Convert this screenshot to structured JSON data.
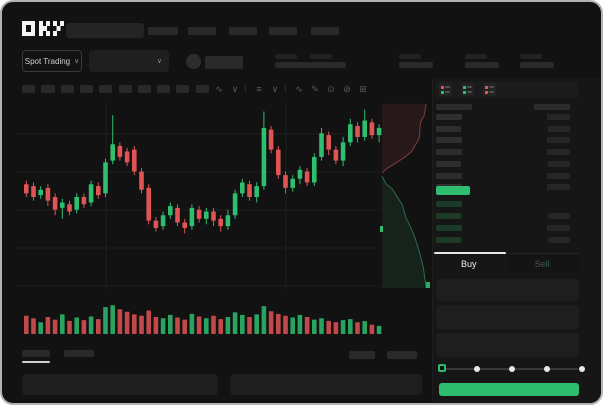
{
  "app": {
    "title": "OKX Spot Trading"
  },
  "colors": {
    "green": "#2fbd70",
    "red": "#e15454",
    "skeleton": "#2a2a2a",
    "skeleton_dim": "#232323",
    "bid_green": "#1b3a28",
    "depth_red_line": "#a05050",
    "depth_green_line": "#3c8a68"
  },
  "header": {
    "logo": "OKX",
    "nav_placeholders": [
      30,
      28,
      28,
      28,
      28
    ]
  },
  "ticker": {
    "market_selector_label": "Spot Trading",
    "chevron": "∨",
    "stat_placeholders": [
      {
        "label_w": 22,
        "value_w": 36
      },
      {
        "label_w": 22,
        "value_w": 36
      },
      {
        "label_w": 22,
        "value_w": 34
      },
      {
        "label_w": 22,
        "value_w": 34
      },
      {
        "label_w": 22,
        "value_w": 34
      }
    ]
  },
  "chart_toolbar": {
    "interval_buttons": [
      13,
      14,
      13,
      13,
      13,
      13,
      13,
      13,
      13,
      13
    ],
    "tools": [
      {
        "name": "indicators-dropdown-icon",
        "glyph": "∿"
      },
      {
        "name": "chevron-down-icon",
        "glyph": "∨"
      },
      {
        "name": "toolbar-divider",
        "glyph": "|"
      },
      {
        "name": "chart-type-dropdown-icon",
        "glyph": "≡"
      },
      {
        "name": "chevron-down-icon",
        "glyph": "∨"
      },
      {
        "name": "toolbar-divider",
        "glyph": "|"
      },
      {
        "name": "trendline-tool-icon",
        "glyph": "∿"
      },
      {
        "name": "draw-tool-icon",
        "glyph": "✎"
      },
      {
        "name": "screenshot-tool-icon",
        "glyph": "⊙"
      },
      {
        "name": "hide-drawings-icon",
        "glyph": "⊘"
      },
      {
        "name": "fullscreen-icon",
        "glyph": "⊞"
      }
    ]
  },
  "order_book": {
    "view_icons": [
      {
        "name": "book-combined-view-icon",
        "rows": [
          "#e15454",
          "#2fbd70"
        ]
      },
      {
        "name": "book-bids-view-icon",
        "rows": [
          "#2fbd70",
          "#2fbd70"
        ]
      },
      {
        "name": "book-asks-view-icon",
        "rows": [
          "#e15454",
          "#e15454"
        ]
      }
    ],
    "header": {
      "left_w": 36,
      "right_w": 36
    },
    "asks": [
      {
        "price_w": 26,
        "amount_w": 23
      },
      {
        "price_w": 25,
        "amount_w": 22
      },
      {
        "price_w": 26,
        "amount_w": 23
      },
      {
        "price_w": 26,
        "amount_w": 23
      },
      {
        "price_w": 25,
        "amount_w": 22
      },
      {
        "price_w": 26,
        "amount_w": 23
      },
      {
        "price_w": 26,
        "amount_w": 23
      }
    ],
    "last_price_bar_w": 34,
    "bids": [
      {
        "price_w": 26,
        "amount_w": 0
      },
      {
        "price_w": 25,
        "amount_w": 22
      },
      {
        "price_w": 26,
        "amount_w": 23
      },
      {
        "price_w": 25,
        "amount_w": 22
      }
    ]
  },
  "trade_panel": {
    "buy_tab": "Buy",
    "sell_tab": "Sell",
    "field_count": 3,
    "slider_stops": 5,
    "slider_value_index": 0,
    "buy_button_label": ""
  },
  "bottom_bar": {
    "tabs": [
      28,
      30
    ],
    "active_tab_index": 0,
    "right_buttons": [
      26,
      30
    ],
    "panels": [
      196,
      192
    ]
  },
  "chart_data": {
    "type": "candlestick",
    "value_scale": [
      0,
      100
    ],
    "candles": [
      [
        57,
        59,
        50,
        52
      ],
      [
        56,
        58,
        48,
        50
      ],
      [
        51,
        56,
        49,
        54
      ],
      [
        55,
        57,
        45,
        48
      ],
      [
        50,
        52,
        40,
        43
      ],
      [
        44,
        49,
        38,
        47
      ],
      [
        46,
        48,
        40,
        42
      ],
      [
        43,
        52,
        41,
        50
      ],
      [
        50,
        52,
        44,
        46
      ],
      [
        47,
        59,
        45,
        57
      ],
      [
        56,
        58,
        49,
        51
      ],
      [
        52,
        71,
        50,
        69
      ],
      [
        70,
        95,
        68,
        79
      ],
      [
        78,
        80,
        70,
        72
      ],
      [
        75,
        77,
        67,
        69
      ],
      [
        76,
        78,
        62,
        64
      ],
      [
        64,
        66,
        52,
        54
      ],
      [
        55,
        57,
        35,
        37
      ],
      [
        37,
        39,
        31,
        33
      ],
      [
        34,
        42,
        32,
        40
      ],
      [
        40,
        47,
        38,
        45
      ],
      [
        44,
        46,
        34,
        36
      ],
      [
        36,
        38,
        30,
        33
      ],
      [
        34,
        46,
        32,
        44
      ],
      [
        43,
        45,
        36,
        38
      ],
      [
        38,
        44,
        35,
        42
      ],
      [
        42,
        44,
        34,
        37
      ],
      [
        38,
        40,
        31,
        34
      ],
      [
        34,
        43,
        32,
        40
      ],
      [
        40,
        54,
        38,
        52
      ],
      [
        52,
        60,
        50,
        58
      ],
      [
        57,
        59,
        48,
        50
      ],
      [
        50,
        58,
        47,
        56
      ],
      [
        56,
        97,
        54,
        88
      ],
      [
        87,
        89,
        74,
        76
      ],
      [
        76,
        78,
        60,
        62
      ],
      [
        62,
        64,
        52,
        55
      ],
      [
        55,
        62,
        53,
        60
      ],
      [
        60,
        67,
        57,
        65
      ],
      [
        64,
        66,
        56,
        58
      ],
      [
        58,
        74,
        56,
        72
      ],
      [
        72,
        88,
        70,
        85
      ],
      [
        84,
        86,
        73,
        76
      ],
      [
        76,
        78,
        68,
        70
      ],
      [
        70,
        83,
        67,
        80
      ],
      [
        80,
        93,
        78,
        90
      ],
      [
        89,
        91,
        80,
        83
      ],
      [
        83,
        98,
        81,
        92
      ],
      [
        91,
        93,
        82,
        84
      ],
      [
        84,
        90,
        80,
        88
      ]
    ],
    "volume": [
      55,
      45,
      30,
      50,
      40,
      60,
      35,
      48,
      38,
      52,
      42,
      88,
      95,
      80,
      70,
      60,
      55,
      75,
      50,
      45,
      58,
      48,
      40,
      62,
      52,
      45,
      55,
      42,
      50,
      68,
      58,
      50,
      60,
      92,
      72,
      62,
      55,
      48,
      58,
      50,
      40,
      45,
      35,
      30,
      38,
      42,
      30,
      34,
      20,
      16
    ],
    "depth": {
      "asks": [
        [
          0.92,
          0.02
        ],
        [
          0.88,
          0.08
        ],
        [
          0.8,
          0.12
        ],
        [
          0.78,
          0.2
        ],
        [
          0.62,
          0.27
        ],
        [
          0.48,
          0.3
        ],
        [
          0.3,
          0.33
        ],
        [
          0.1,
          0.36
        ],
        [
          0.0,
          0.385
        ]
      ],
      "bids": [
        [
          0.0,
          0.4
        ],
        [
          0.08,
          0.44
        ],
        [
          0.22,
          0.47
        ],
        [
          0.34,
          0.52
        ],
        [
          0.42,
          0.55
        ],
        [
          0.5,
          0.62
        ],
        [
          0.58,
          0.66
        ],
        [
          0.68,
          0.72
        ],
        [
          0.78,
          0.8
        ],
        [
          0.86,
          0.88
        ],
        [
          0.92,
          0.99
        ]
      ]
    },
    "grid": true,
    "legend_position": "none"
  }
}
